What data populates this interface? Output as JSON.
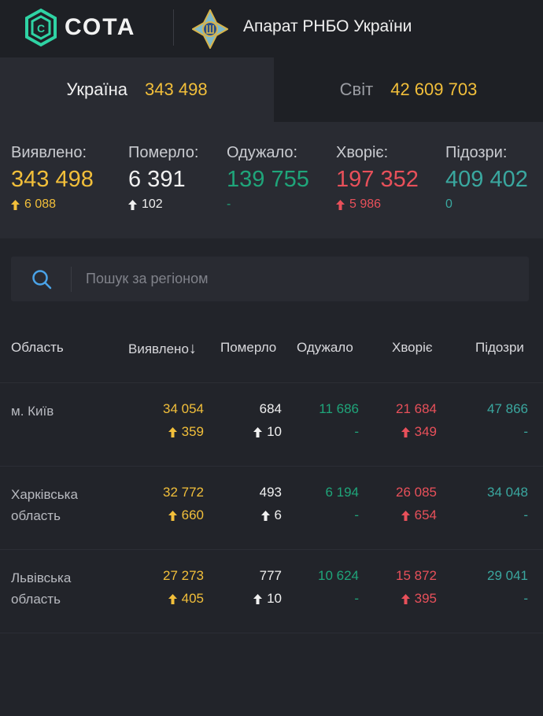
{
  "header": {
    "logo_text": "СОТА",
    "org": "Апарат РНБО України"
  },
  "tabs": [
    {
      "label": "Україна",
      "value": "343 498"
    },
    {
      "label": "Світ",
      "value": "42 609 703"
    }
  ],
  "stats": [
    {
      "label": "Виявлено:",
      "value": "343 498",
      "delta": "6 088",
      "arrow": true,
      "color": "#f2bf3a"
    },
    {
      "label": "Померло:",
      "value": "6 391",
      "delta": "102",
      "arrow": true,
      "color": "#f0f0f0"
    },
    {
      "label": "Одужало:",
      "value": "139 755",
      "delta": "-",
      "arrow": false,
      "color": "#1fa57a"
    },
    {
      "label": "Хворіє:",
      "value": "197 352",
      "delta": "5 986",
      "arrow": true,
      "color": "#e8505a"
    },
    {
      "label": "Підозри:",
      "value": "409 402",
      "delta": "0",
      "arrow": false,
      "color": "#3aa79f"
    }
  ],
  "search": {
    "placeholder": "Пошук за регіоном"
  },
  "table": {
    "columns": [
      "Область",
      "Виявлено",
      "Померло",
      "Одужало",
      "Хворіє",
      "Підозри"
    ],
    "sort_indicator": "↓",
    "rows": [
      {
        "name": "м. Київ",
        "cases": "34 054",
        "cases_d": "359",
        "deaths": "684",
        "deaths_d": "10",
        "recovered": "11 686",
        "recovered_d": "-",
        "sick": "21 684",
        "sick_d": "349",
        "suspected": "47 866",
        "suspected_d": "-"
      },
      {
        "name": "Харківська область",
        "cases": "32 772",
        "cases_d": "660",
        "deaths": "493",
        "deaths_d": "6",
        "recovered": "6 194",
        "recovered_d": "-",
        "sick": "26 085",
        "sick_d": "654",
        "suspected": "34 048",
        "suspected_d": "-"
      },
      {
        "name": "Львівська область",
        "cases": "27 273",
        "cases_d": "405",
        "deaths": "777",
        "deaths_d": "10",
        "recovered": "10 624",
        "recovered_d": "-",
        "sick": "15 872",
        "sick_d": "395",
        "suspected": "29 041",
        "suspected_d": "-"
      }
    ]
  }
}
